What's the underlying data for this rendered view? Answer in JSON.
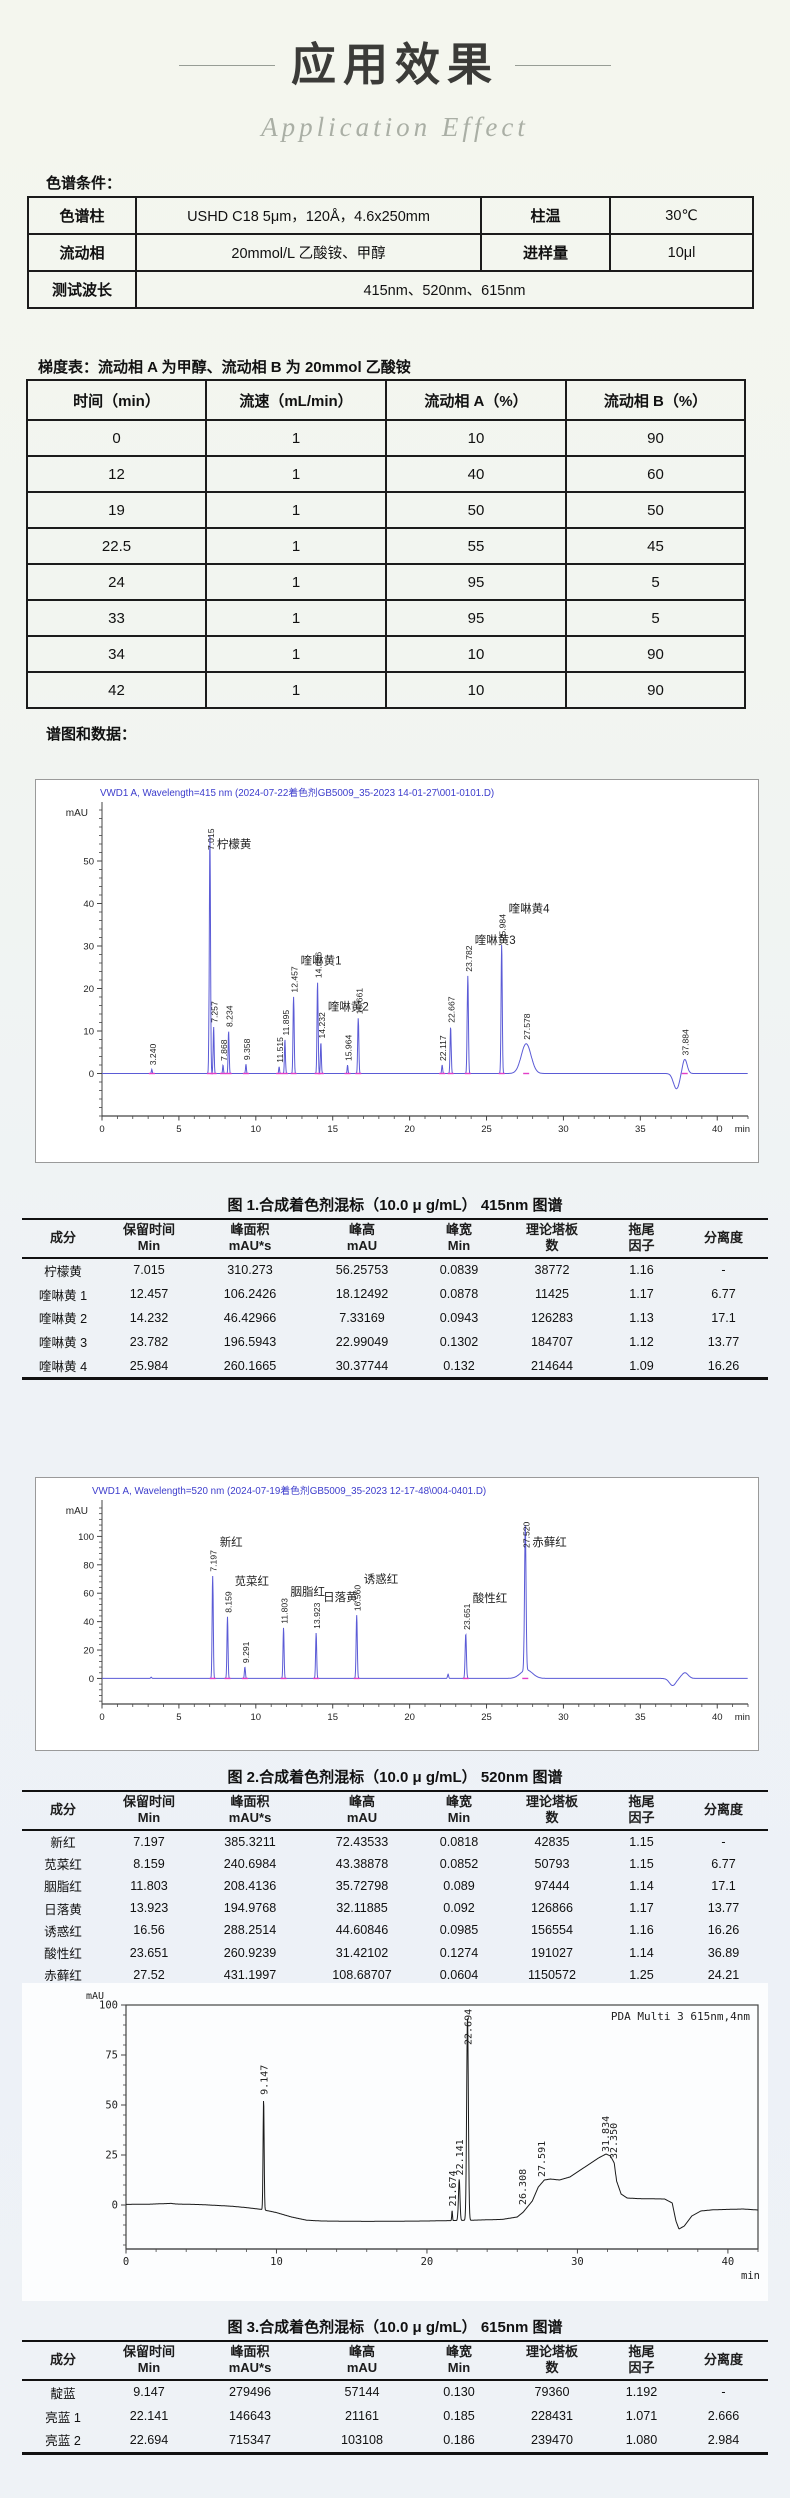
{
  "page": {
    "title": "应用效果",
    "subtitle": "Application Effect"
  },
  "conditions": {
    "heading": "色谱条件：",
    "rows": [
      {
        "c0": "色谱柱",
        "c1": "USHD C18 5μm，120Å，4.6x250mm",
        "c2": "柱温",
        "c3": "30℃"
      },
      {
        "c0": "流动相",
        "c1": "20mmol/L 乙酸铵、甲醇",
        "c2": "进样量",
        "c3": "10μl"
      },
      {
        "c0": "测试波长",
        "c1": "415nm、520nm、615nm"
      }
    ]
  },
  "gradient": {
    "heading": "梯度表：流动相 A 为甲醇、流动相 B 为 20mmol 乙酸铵",
    "headers": [
      "时间（min）",
      "流速（mL/min）",
      "流动相 A（%）",
      "流动相 B（%）"
    ],
    "rows": [
      [
        "0",
        "1",
        "10",
        "90"
      ],
      [
        "12",
        "1",
        "40",
        "60"
      ],
      [
        "19",
        "1",
        "50",
        "50"
      ],
      [
        "22.5",
        "1",
        "55",
        "45"
      ],
      [
        "24",
        "1",
        "95",
        "5"
      ],
      [
        "33",
        "1",
        "95",
        "5"
      ],
      [
        "34",
        "1",
        "10",
        "90"
      ],
      [
        "42",
        "1",
        "10",
        "90"
      ]
    ]
  },
  "spectra_heading": "谱图和数据：",
  "chart_data": [
    {
      "type": "line",
      "title": "VWD1 A, Wavelength=415 nm (2024-07-22着色剂GB5009_35-2023  14-01-27\\001-0101.D)",
      "title_color": "#3c3ccc",
      "trace_color": "#5b5bd6",
      "ylabel": "mAU",
      "xlabel": "min",
      "xlim": [
        0,
        42
      ],
      "ylim": [
        -10,
        62
      ],
      "xticks": [
        0,
        5,
        10,
        15,
        20,
        25,
        30,
        35,
        40
      ],
      "yticks": [
        0,
        10,
        20,
        30,
        40,
        50
      ],
      "x_minor": 1,
      "y_minor": 2,
      "peaks": [
        {
          "t": 3.24,
          "h": 1.0,
          "w": 0.04,
          "label": "3.240"
        },
        {
          "t": 7.015,
          "h": 56.3,
          "w": 0.055,
          "label": "7.015",
          "name": "柠檬黄"
        },
        {
          "t": 7.257,
          "h": 11.0,
          "w": 0.045,
          "label": "7.257"
        },
        {
          "t": 7.868,
          "h": 2.0,
          "w": 0.04,
          "label": "7.868"
        },
        {
          "t": 8.234,
          "h": 10.0,
          "w": 0.045,
          "label": "8.234"
        },
        {
          "t": 9.358,
          "h": 2.2,
          "w": 0.04,
          "label": "9.358"
        },
        {
          "t": 11.515,
          "h": 1.6,
          "w": 0.04,
          "label": "11.515"
        },
        {
          "t": 11.895,
          "h": 8.0,
          "w": 0.045,
          "label": "11.895"
        },
        {
          "t": 12.457,
          "h": 18.1,
          "w": 0.05,
          "label": "12.457",
          "name": "喹啉黄1"
        },
        {
          "t": 14.016,
          "h": 21.5,
          "w": 0.05,
          "label": "14.016"
        },
        {
          "t": 14.232,
          "h": 7.3,
          "w": 0.045,
          "label": "14.232",
          "name": "喹啉黄2"
        },
        {
          "t": 15.964,
          "h": 2.0,
          "w": 0.04,
          "label": "15.964"
        },
        {
          "t": 16.661,
          "h": 13.0,
          "w": 0.05,
          "label": "16.661"
        },
        {
          "t": 22.117,
          "h": 2.0,
          "w": 0.045,
          "label": "22.117"
        },
        {
          "t": 22.667,
          "h": 11.0,
          "w": 0.05,
          "label": "22.667"
        },
        {
          "t": 23.782,
          "h": 23.0,
          "w": 0.055,
          "label": "23.782",
          "name": "喹啉黄3"
        },
        {
          "t": 25.984,
          "h": 30.4,
          "w": 0.055,
          "label": "25.984",
          "name": "喹啉黄4"
        },
        {
          "t": 27.578,
          "h": 7.0,
          "w": 0.45,
          "label": "27.578"
        },
        {
          "t": 37.35,
          "h": -3.6,
          "w": 0.28
        },
        {
          "t": 37.884,
          "h": 3.4,
          "w": 0.22,
          "label": "37.884"
        }
      ]
    },
    {
      "type": "line",
      "title": "VWD1 A, Wavelength=520 nm (2024-07-19着色剂GB5009_35-2023  12-17-48\\004-0401.D)",
      "title_color": "#3c3ccc",
      "trace_color": "#5b5bd6",
      "ylabel": "mAU",
      "xlabel": "min",
      "xlim": [
        0,
        42
      ],
      "ylim": [
        -18,
        120
      ],
      "xticks": [
        0,
        5,
        10,
        15,
        20,
        25,
        30,
        35,
        40
      ],
      "yticks": [
        0,
        20,
        40,
        60,
        80,
        100
      ],
      "x_minor": 1,
      "y_minor": 4,
      "peaks": [
        {
          "t": 3.2,
          "h": 0.9,
          "w": 0.05
        },
        {
          "t": 7.197,
          "h": 72.4,
          "w": 0.05,
          "label": "7.197",
          "name": "新红"
        },
        {
          "t": 8.159,
          "h": 43.4,
          "w": 0.05,
          "label": "8.159",
          "name": "苋菜红"
        },
        {
          "t": 9.291,
          "h": 8.0,
          "w": 0.045,
          "label": "9.291"
        },
        {
          "t": 11.803,
          "h": 35.7,
          "w": 0.05,
          "label": "11.803",
          "name": "胭脂红"
        },
        {
          "t": 13.923,
          "h": 32.1,
          "w": 0.05,
          "label": "13.923",
          "name": "日落黄"
        },
        {
          "t": 16.56,
          "h": 44.6,
          "w": 0.055,
          "label": "16.560",
          "name": "诱惑红"
        },
        {
          "t": 22.5,
          "h": 3.0,
          "w": 0.05
        },
        {
          "t": 23.651,
          "h": 31.4,
          "w": 0.06,
          "label": "23.651",
          "name": "酸性红"
        },
        {
          "t": 27.52,
          "h": 102.0,
          "w": 0.07,
          "label": "27.520",
          "name": "赤藓红"
        },
        {
          "t": 27.6,
          "h": 6.0,
          "w": 0.55
        },
        {
          "t": 37.1,
          "h": -5.0,
          "w": 0.3
        },
        {
          "t": 37.9,
          "h": 4.0,
          "w": 0.3
        }
      ]
    },
    {
      "type": "line",
      "annotation": "PDA Multi 3 615nm,4nm",
      "trace_color": "#1a1a1a",
      "mono": true,
      "frame": true,
      "ylabel": "mAU",
      "xlabel": "min",
      "xlim": [
        0,
        42
      ],
      "ylim": [
        -22,
        100
      ],
      "xticks": [
        0,
        10,
        20,
        30,
        40
      ],
      "yticks": [
        0,
        25,
        50,
        75,
        100
      ],
      "x_minor": 2,
      "y_minor": 5,
      "baseline": [
        [
          0,
          0.3
        ],
        [
          1.5,
          0.4
        ],
        [
          3,
          0.8
        ],
        [
          3.3,
          0.5
        ],
        [
          5,
          0.2
        ],
        [
          7,
          -0.6
        ],
        [
          8,
          -1.3
        ],
        [
          9,
          -2.2
        ],
        [
          10,
          -3.8
        ],
        [
          11,
          -6
        ],
        [
          12,
          -7.6
        ],
        [
          13,
          -8
        ],
        [
          16,
          -8.2
        ],
        [
          20,
          -8
        ],
        [
          21.5,
          -7.8
        ],
        [
          23,
          -7.6
        ],
        [
          25,
          -7.2
        ],
        [
          26,
          -6
        ],
        [
          26.4,
          -3.5
        ],
        [
          27,
          2
        ],
        [
          27.4,
          9
        ],
        [
          27.8,
          12.5
        ],
        [
          28.2,
          13
        ],
        [
          28.8,
          12.5
        ],
        [
          29.5,
          14
        ],
        [
          30.5,
          19
        ],
        [
          31.4,
          23.5
        ],
        [
          31.9,
          25.5
        ],
        [
          32.2,
          24.5
        ],
        [
          32.45,
          21
        ],
        [
          32.6,
          12
        ],
        [
          32.9,
          5.5
        ],
        [
          33.3,
          3.5
        ],
        [
          34,
          3.2
        ],
        [
          35.8,
          3
        ],
        [
          36.3,
          1
        ],
        [
          36.55,
          -8
        ],
        [
          36.75,
          -12
        ],
        [
          37.1,
          -10.5
        ],
        [
          37.6,
          -5.5
        ],
        [
          38.2,
          -3
        ],
        [
          39,
          -2.4
        ],
        [
          40,
          -2.2
        ],
        [
          41,
          -2
        ],
        [
          42,
          -2.5
        ]
      ],
      "peaks": [
        {
          "t": 9.147,
          "h": 55.5,
          "w": 0.05,
          "label": "9.147"
        },
        {
          "t": 21.674,
          "h": 5.0,
          "w": 0.035,
          "label": "21.674"
        },
        {
          "t": 22.141,
          "h": 20.5,
          "w": 0.07,
          "label": "22.141"
        },
        {
          "t": 22.694,
          "h": 101.5,
          "w": 0.08,
          "label": "22.694"
        }
      ],
      "labels": [
        {
          "t": 26.308,
          "v": 0,
          "text": "26.308"
        },
        {
          "t": 27.591,
          "v": 14,
          "text": "27.591"
        },
        {
          "t": 31.834,
          "v": 26.5,
          "text": "31.834"
        },
        {
          "t": 32.35,
          "v": 23,
          "text": "32.350"
        }
      ]
    }
  ],
  "results_tables": [
    {
      "caption": "图 1.合成着色剂混标（10.0 μ g/mL）  415nm 图谱",
      "headers": [
        [
          "成分",
          ""
        ],
        [
          "保留时间",
          "Min"
        ],
        [
          "峰面积",
          "mAU*s"
        ],
        [
          "峰高",
          "mAU"
        ],
        [
          "峰宽",
          "Min"
        ],
        [
          "理论塔板",
          "数"
        ],
        [
          "拖尾",
          "因子"
        ],
        [
          "分离度",
          ""
        ]
      ],
      "rows": [
        [
          "柠檬黄",
          "7.015",
          "310.273",
          "56.25753",
          "0.0839",
          "38772",
          "1.16",
          "-"
        ],
        [
          "喹啉黄 1",
          "12.457",
          "106.2426",
          "18.12492",
          "0.0878",
          "11425",
          "1.17",
          "6.77"
        ],
        [
          "喹啉黄 2",
          "14.232",
          "46.42966",
          "7.33169",
          "0.0943",
          "126283",
          "1.13",
          "17.1"
        ],
        [
          "喹啉黄 3",
          "23.782",
          "196.5943",
          "22.99049",
          "0.1302",
          "184707",
          "1.12",
          "13.77"
        ],
        [
          "喹啉黄 4",
          "25.984",
          "260.1665",
          "30.37744",
          "0.132",
          "214644",
          "1.09",
          "16.26"
        ]
      ]
    },
    {
      "caption": "图 2.合成着色剂混标（10.0 μ g/mL）  520nm 图谱",
      "headers": [
        [
          "成分",
          ""
        ],
        [
          "保留时间",
          "Min"
        ],
        [
          "峰面积",
          "mAU*s"
        ],
        [
          "峰高",
          "mAU"
        ],
        [
          "峰宽",
          "Min"
        ],
        [
          "理论塔板",
          "数"
        ],
        [
          "拖尾",
          "因子"
        ],
        [
          "分离度",
          ""
        ]
      ],
      "rows": [
        [
          "新红",
          "7.197",
          "385.3211",
          "72.43533",
          "0.0818",
          "42835",
          "1.15",
          "-"
        ],
        [
          "苋菜红",
          "8.159",
          "240.6984",
          "43.38878",
          "0.0852",
          "50793",
          "1.15",
          "6.77"
        ],
        [
          "胭脂红",
          "11.803",
          "208.4136",
          "35.72798",
          "0.089",
          "97444",
          "1.14",
          "17.1"
        ],
        [
          "日落黄",
          "13.923",
          "194.9768",
          "32.11885",
          "0.092",
          "126866",
          "1.17",
          "13.77"
        ],
        [
          "诱惑红",
          "16.56",
          "288.2514",
          "44.60846",
          "0.0985",
          "156554",
          "1.16",
          "16.26"
        ],
        [
          "酸性红",
          "23.651",
          "260.9239",
          "31.42102",
          "0.1274",
          "191027",
          "1.14",
          "36.89"
        ],
        [
          "赤藓红",
          "27.52",
          "431.1997",
          "108.68707",
          "0.0604",
          "1150572",
          "1.25",
          "24.21"
        ]
      ]
    },
    {
      "caption": "图 3.合成着色剂混标（10.0 μ g/mL）  615nm 图谱",
      "headers": [
        [
          "成分",
          ""
        ],
        [
          "保留时间",
          "Min"
        ],
        [
          "峰面积",
          "mAU*s"
        ],
        [
          "峰高",
          "mAU"
        ],
        [
          "峰宽",
          "Min"
        ],
        [
          "理论塔板",
          "数"
        ],
        [
          "拖尾",
          "因子"
        ],
        [
          "分离度",
          ""
        ]
      ],
      "rows": [
        [
          "靛蓝",
          "9.147",
          "279496",
          "57144",
          "0.130",
          "79360",
          "1.192",
          "-"
        ],
        [
          "亮蓝 1",
          "22.141",
          "146643",
          "21161",
          "0.185",
          "228431",
          "1.071",
          "2.666"
        ],
        [
          "亮蓝 2",
          "22.694",
          "715347",
          "103108",
          "0.186",
          "239470",
          "1.080",
          "2.984"
        ]
      ]
    }
  ]
}
